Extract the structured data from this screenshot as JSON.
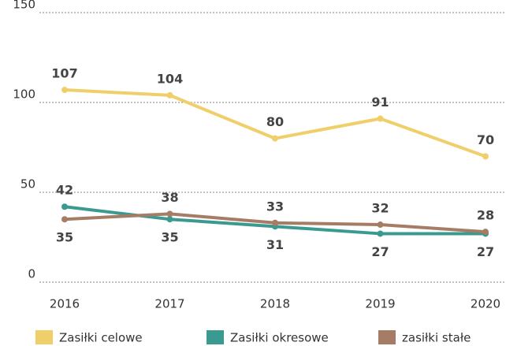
{
  "chart_data": {
    "type": "line",
    "categories": [
      "2016",
      "2017",
      "2018",
      "2019",
      "2020"
    ],
    "series": [
      {
        "name": "Zasiłki celowe",
        "color": "#f0cf6a",
        "values": [
          107,
          104,
          80,
          91,
          70
        ]
      },
      {
        "name": "Zasiłki okresowe",
        "color": "#3a9a8f",
        "values": [
          42,
          35,
          31,
          27,
          27
        ]
      },
      {
        "name": "zasiłki stałe",
        "color": "#a57c65",
        "values": [
          35,
          38,
          33,
          32,
          28
        ]
      }
    ],
    "ylim": [
      0,
      150
    ],
    "yticks": [
      0,
      50,
      100,
      150
    ],
    "grid": true,
    "legend": "bottom"
  }
}
